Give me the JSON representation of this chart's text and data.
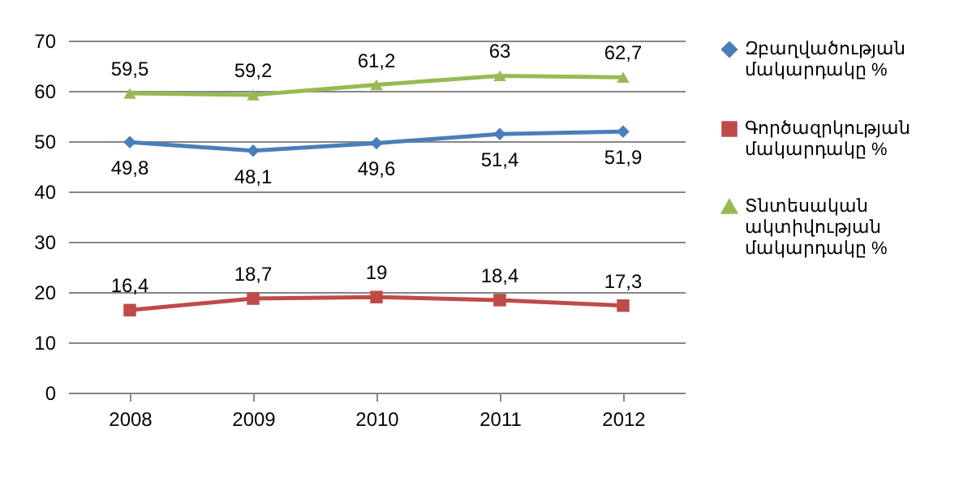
{
  "chart_data": {
    "type": "line",
    "categories": [
      "2008",
      "2009",
      "2010",
      "2011",
      "2012"
    ],
    "series": [
      {
        "name": "Զբաղվածության մակարդակը %",
        "color": "#4a7ebb",
        "marker": "diamond",
        "values": [
          49.8,
          48.1,
          49.6,
          51.4,
          51.9
        ],
        "value_labels": [
          "49,8",
          "48,1",
          "49,6",
          "51,4",
          "51,9"
        ]
      },
      {
        "name": "Գործազրկության մակարդակը %",
        "color": "#be4b48",
        "marker": "square",
        "values": [
          16.4,
          18.7,
          19,
          18.4,
          17.3
        ],
        "value_labels": [
          "16,4",
          "18,7",
          "19",
          "18,4",
          "17,3"
        ]
      },
      {
        "name": "Տնտեսական ակտիվության մակարդակը %",
        "color": "#98b954",
        "marker": "triangle",
        "values": [
          59.5,
          59.2,
          61.2,
          63,
          62.7
        ],
        "value_labels": [
          "59,5",
          "59,2",
          "61,2",
          "63",
          "62,7"
        ]
      }
    ],
    "ylim": [
      0,
      70
    ],
    "yticks": [
      0,
      10,
      20,
      30,
      40,
      50,
      60,
      70
    ],
    "grid": "y",
    "legend": "right",
    "data_labels": true
  }
}
